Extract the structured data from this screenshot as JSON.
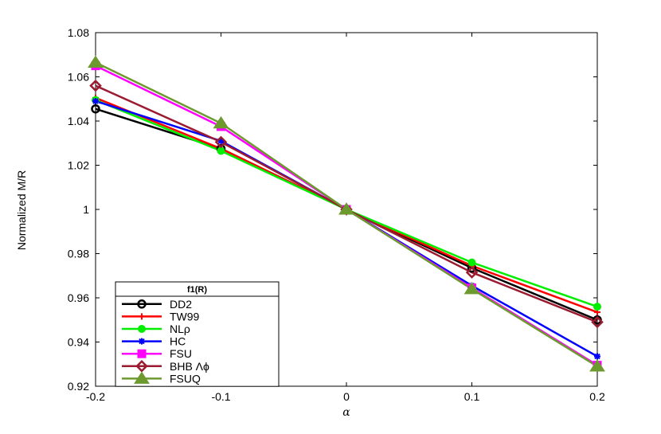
{
  "chart_data": {
    "type": "line",
    "xlabel": "α",
    "ylabel": "Normalized M/R",
    "x": [
      -0.2,
      -0.1,
      0,
      0.1,
      0.2
    ],
    "xlim": [
      -0.2,
      0.2
    ],
    "ylim": [
      0.92,
      1.08
    ],
    "xticks": [
      -0.2,
      -0.1,
      0,
      0.1,
      0.2
    ],
    "xtick_labels": [
      "-0.2",
      "-0.1",
      "0",
      "0.1",
      "0.2"
    ],
    "yticks": [
      0.92,
      0.94,
      0.96,
      0.98,
      1,
      1.02,
      1.04,
      1.06,
      1.08
    ],
    "ytick_labels": [
      "0.92",
      "0.94",
      "0.96",
      "0.98",
      "1",
      "1.02",
      "1.04",
      "1.06",
      "1.08"
    ],
    "grid": false,
    "legend": {
      "title": "f1(R)",
      "position": "bottom-left"
    },
    "series": [
      {
        "name": "DD2",
        "color": "#000000",
        "marker": "circle-open",
        "values": [
          1.0455,
          1.0275,
          1.0,
          0.9735,
          0.95
        ]
      },
      {
        "name": "TW99",
        "color": "#ff0000",
        "marker": "plus",
        "values": [
          1.0505,
          1.0275,
          1.0,
          0.9745,
          0.9535
        ]
      },
      {
        "name": "NLρ",
        "color": "#00ee00",
        "marker": "circle-filled",
        "values": [
          1.0495,
          1.0265,
          1.0,
          0.976,
          0.956
        ]
      },
      {
        "name": "HC",
        "color": "#0000ff",
        "marker": "asterisk",
        "values": [
          1.049,
          1.031,
          1.0,
          0.9655,
          0.9335
        ]
      },
      {
        "name": "FSU",
        "color": "#ff00ff",
        "marker": "square",
        "values": [
          1.065,
          1.0375,
          1.0,
          0.9645,
          0.9295
        ]
      },
      {
        "name": "BHB Λϕ",
        "color": "#9b1b30",
        "marker": "diamond-open",
        "values": [
          1.056,
          1.0305,
          1.0,
          0.9715,
          0.949
        ]
      },
      {
        "name": "FSUQ",
        "color": "#6d9a2f",
        "marker": "triangle",
        "values": [
          1.0665,
          1.039,
          1.0,
          0.964,
          0.929
        ]
      }
    ]
  }
}
